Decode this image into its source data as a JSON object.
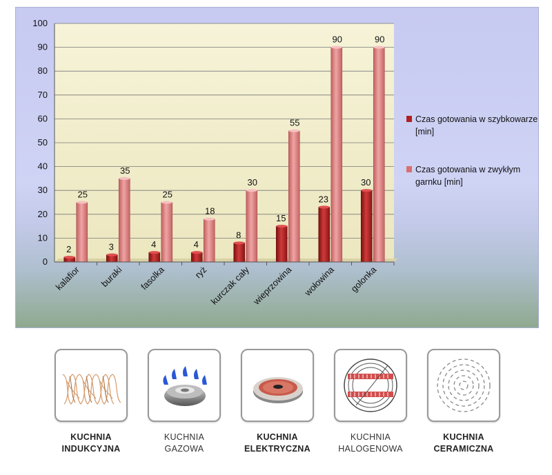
{
  "chart_data": {
    "type": "bar",
    "categories": [
      "kalafior",
      "buraki",
      "fasolka",
      "ryż",
      "kurczak cały",
      "wieprzowina",
      "wołowina",
      "golonka"
    ],
    "series": [
      {
        "name": "Czas gotowania  w szybkowarze [min]",
        "values": [
          2,
          3,
          4,
          4,
          8,
          15,
          23,
          30
        ],
        "color": "#b02020"
      },
      {
        "name": "Czas gotowania  w zwykłym garnku [min]",
        "values": [
          25,
          35,
          25,
          18,
          30,
          55,
          90,
          90
        ],
        "color": "#d87070"
      }
    ],
    "ylim": [
      0,
      100
    ],
    "yticks": [
      0,
      10,
      20,
      30,
      40,
      50,
      60,
      70,
      80,
      90,
      100
    ],
    "grid": true,
    "legend_position": "right",
    "plot_background": "#f3f0cf"
  },
  "legend": {
    "items": [
      {
        "line1": "Czas gotowania  w szybkowarze",
        "line2": "[min]"
      },
      {
        "line1": "Czas gotowania  w zwykłym",
        "line2": "garnku [min]"
      }
    ]
  },
  "cooktops": [
    {
      "line1": "KUCHNIA",
      "line2": "INDUKCYJNA",
      "icon": "induction-coil-icon"
    },
    {
      "line1": "KUCHNIA",
      "line2": "GAZOWA",
      "icon": "gas-burner-icon"
    },
    {
      "line1": "KUCHNIA",
      "line2": "ELEKTRYCZNA",
      "icon": "electric-plate-icon"
    },
    {
      "line1": "KUCHNIA",
      "line2": "HALOGENOWA",
      "icon": "halogen-icon"
    },
    {
      "line1": "KUCHNIA",
      "line2": "CERAMICZNA",
      "icon": "ceramic-icon"
    }
  ]
}
